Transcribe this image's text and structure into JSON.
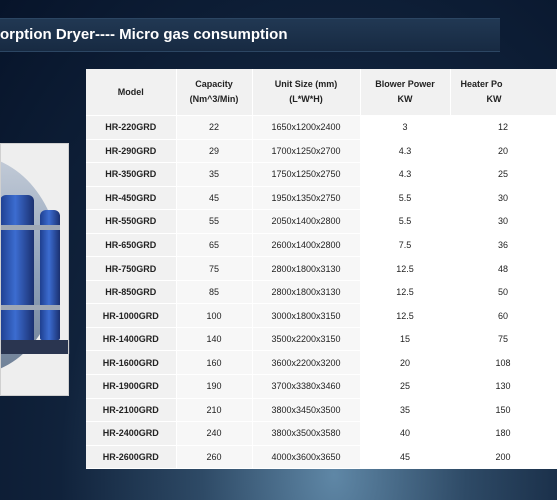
{
  "title": "orption Dryer---- Micro gas consumption",
  "photo": {
    "description_icon": "adsorption-dryer-photo"
  },
  "table": {
    "headers": {
      "model": "Model",
      "capacity": "Capacity",
      "capacity_unit": "(Nm^3/Min)",
      "unit_size": "Unit Size (mm)",
      "unit_size_sub": "(L*W*H)",
      "blower": "Blower  Power",
      "blower_unit": "KW",
      "heater": "Heater  Po",
      "heater_unit": "KW"
    },
    "rows": [
      {
        "model": "HR-220GRD",
        "capacity": "22",
        "size": "1650x1200x2400",
        "blower": "3",
        "heater": "12"
      },
      {
        "model": "HR-290GRD",
        "capacity": "29",
        "size": "1700x1250x2700",
        "blower": "4.3",
        "heater": "20"
      },
      {
        "model": "HR-350GRD",
        "capacity": "35",
        "size": "1750x1250x2750",
        "blower": "4.3",
        "heater": "25"
      },
      {
        "model": "HR-450GRD",
        "capacity": "45",
        "size": "1950x1350x2750",
        "blower": "5.5",
        "heater": "30"
      },
      {
        "model": "HR-550GRD",
        "capacity": "55",
        "size": "2050x1400x2800",
        "blower": "5.5",
        "heater": "30"
      },
      {
        "model": "HR-650GRD",
        "capacity": "65",
        "size": "2600x1400x2800",
        "blower": "7.5",
        "heater": "36"
      },
      {
        "model": "HR-750GRD",
        "capacity": "75",
        "size": "2800x1800x3130",
        "blower": "12.5",
        "heater": "48"
      },
      {
        "model": "HR-850GRD",
        "capacity": "85",
        "size": "2800x1800x3130",
        "blower": "12.5",
        "heater": "50"
      },
      {
        "model": "HR-1000GRD",
        "capacity": "100",
        "size": "3000x1800x3150",
        "blower": "12.5",
        "heater": "60"
      },
      {
        "model": "HR-1400GRD",
        "capacity": "140",
        "size": "3500x2200x3150",
        "blower": "15",
        "heater": "75"
      },
      {
        "model": "HR-1600GRD",
        "capacity": "160",
        "size": "3600x2200x3200",
        "blower": "20",
        "heater": "108"
      },
      {
        "model": "HR-1900GRD",
        "capacity": "190",
        "size": "3700x3380x3460",
        "blower": "25",
        "heater": "130"
      },
      {
        "model": "HR-2100GRD",
        "capacity": "210",
        "size": "3800x3450x3500",
        "blower": "35",
        "heater": "150"
      },
      {
        "model": "HR-2400GRD",
        "capacity": "240",
        "size": "3800x3500x3580",
        "blower": "40",
        "heater": "180"
      },
      {
        "model": "HR-2600GRD",
        "capacity": "260",
        "size": "4000x3600x3650",
        "blower": "45",
        "heater": "200"
      }
    ]
  }
}
